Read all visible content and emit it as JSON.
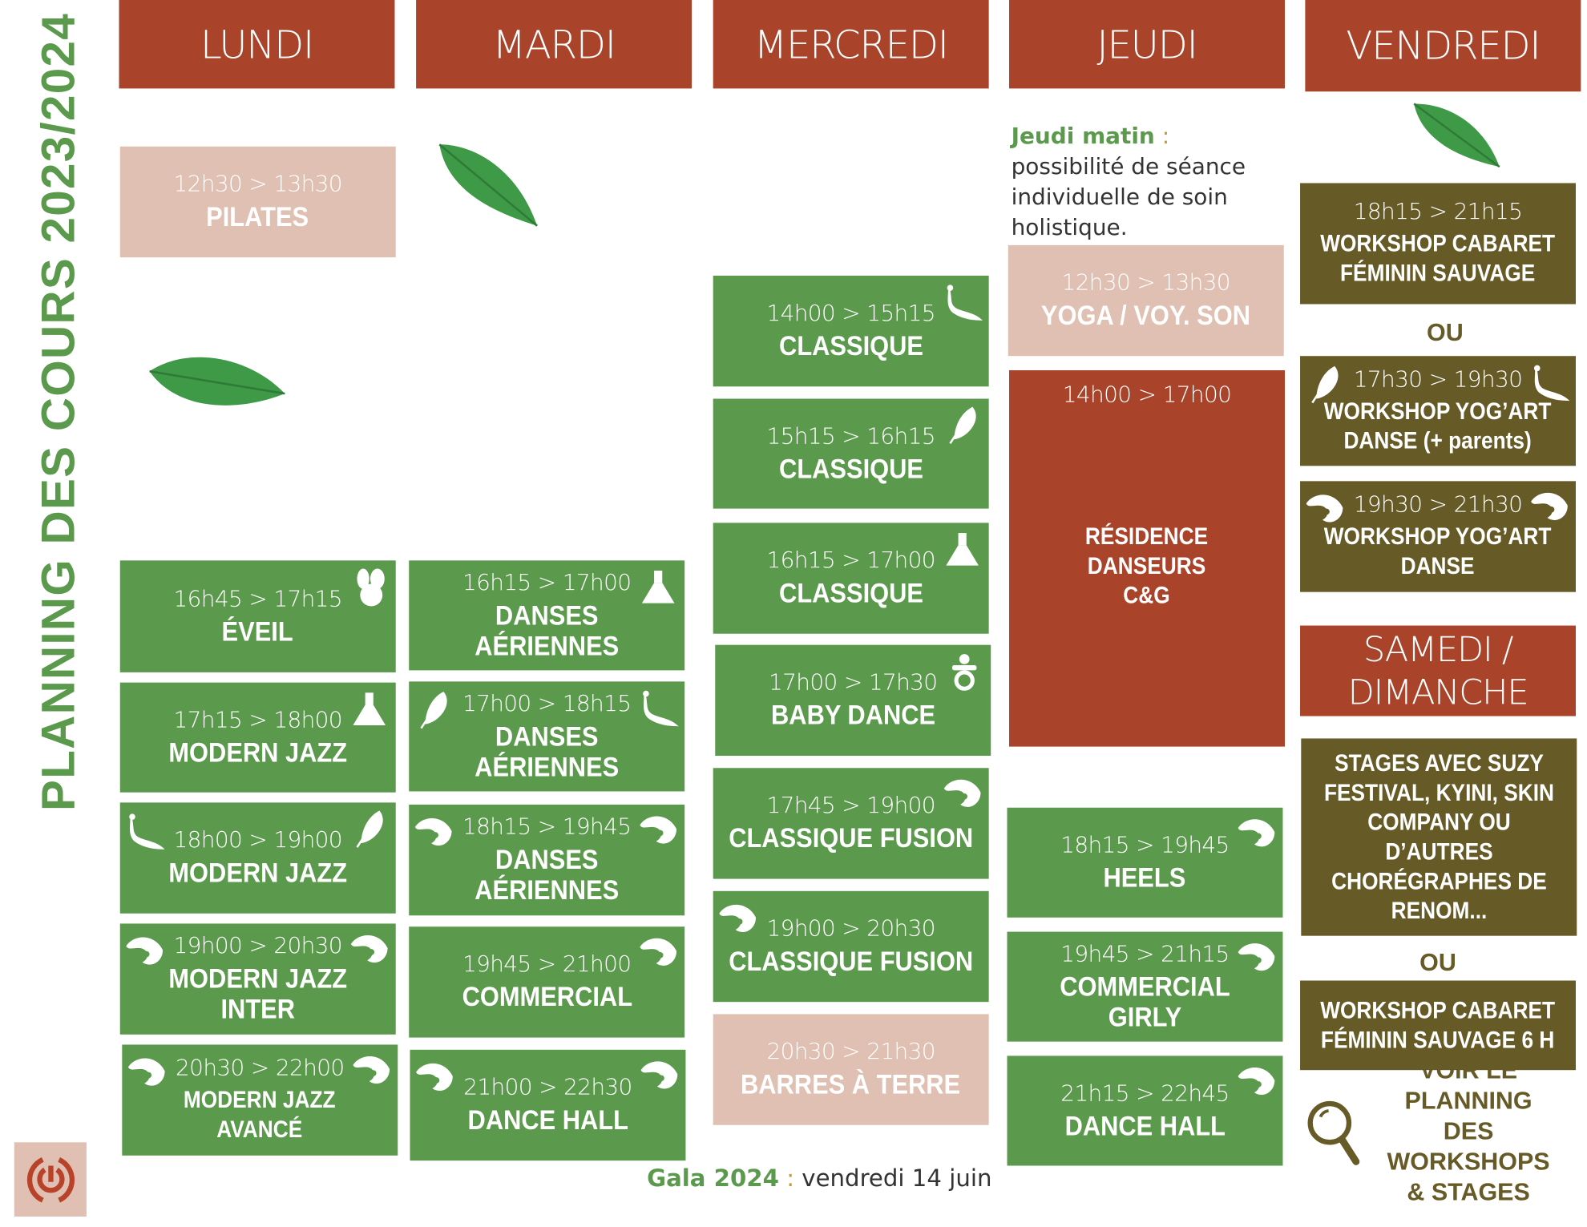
{
  "title": "PLANNING DES COURS 2023/2024",
  "colors": {
    "header": "#a94329",
    "green": "#5b9a4c",
    "pink": "#dfc0b3",
    "olive": "#665a26"
  },
  "days": [
    "LUNDI",
    "MARDI",
    "MERCREDI",
    "JEUDI",
    "VENDREDI"
  ],
  "jeudi_note": {
    "label": "Jeudi matin",
    "sep": " :",
    "text": " possibilité de séance individuelle de soin holistique."
  },
  "classes": [
    {
      "day": "LUNDI",
      "time": "12h30 > 13h30",
      "title": "PILATES",
      "color": "pink",
      "icons": []
    },
    {
      "day": "LUNDI",
      "time": "16h45 > 17h15",
      "title": "ÉVEIL",
      "color": "green",
      "icons": [
        "",
        "bunny"
      ]
    },
    {
      "day": "LUNDI",
      "time": "17h15 > 18h00",
      "title": "MODERN JAZZ",
      "color": "green",
      "icons": [
        "",
        "dress"
      ]
    },
    {
      "day": "LUNDI",
      "time": "18h00 > 19h00",
      "title": "MODERN JAZZ",
      "color": "green",
      "icons": [
        "peacock",
        "feather"
      ]
    },
    {
      "day": "LUNDI",
      "time": "19h00 > 20h30",
      "title": "MODERN JAZZ INTER",
      "color": "green",
      "icons": [
        "yinyang",
        "yinyang"
      ]
    },
    {
      "day": "LUNDI",
      "time": "20h30 > 22h00",
      "title": "MODERN JAZZ\nAVANCÉ",
      "color": "green",
      "icons": [
        "yinyang",
        "yinyang"
      ]
    },
    {
      "day": "MARDI",
      "time": "16h15 > 17h00",
      "title": "DANSES AÉRIENNES",
      "color": "green",
      "icons": [
        "",
        "dress"
      ]
    },
    {
      "day": "MARDI",
      "time": "17h00 > 18h15",
      "title": "DANSES AÉRIENNES",
      "color": "green",
      "icons": [
        "feather",
        "peacock"
      ]
    },
    {
      "day": "MARDI",
      "time": "18h15 > 19h45",
      "title": "DANSES AÉRIENNES",
      "color": "green",
      "icons": [
        "yinyang",
        "yinyang"
      ]
    },
    {
      "day": "MARDI",
      "time": "19h45 > 21h00",
      "title": "COMMERCIAL",
      "color": "green",
      "icons": [
        "",
        "yinyang"
      ]
    },
    {
      "day": "MARDI",
      "time": "21h00 > 22h30",
      "title": "DANCE HALL",
      "color": "green",
      "icons": [
        "yinyang",
        "yinyang"
      ]
    },
    {
      "day": "MERCREDI",
      "time": "14h00 > 15h15",
      "title": "CLASSIQUE",
      "color": "green",
      "icons": [
        "",
        "peacock"
      ]
    },
    {
      "day": "MERCREDI",
      "time": "15h15 > 16h15",
      "title": "CLASSIQUE",
      "color": "green",
      "icons": [
        "",
        "feather"
      ]
    },
    {
      "day": "MERCREDI",
      "time": "16h15 > 17h00",
      "title": "CLASSIQUE",
      "color": "green",
      "icons": [
        "",
        "dress"
      ]
    },
    {
      "day": "MERCREDI",
      "time": "17h00 > 17h30",
      "title": "BABY DANCE",
      "color": "green",
      "icons": [
        "",
        "pacifier"
      ]
    },
    {
      "day": "MERCREDI",
      "time": "17h45 > 19h00",
      "title": "CLASSIQUE FUSION",
      "color": "green",
      "icons": [
        "",
        "yinyang"
      ]
    },
    {
      "day": "MERCREDI",
      "time": "19h00 > 20h30",
      "title": "CLASSIQUE FUSION",
      "color": "green",
      "icons": [
        "yinyang",
        ""
      ]
    },
    {
      "day": "MERCREDI",
      "time": "20h30 > 21h30",
      "title": "BARRES À TERRE",
      "color": "pink",
      "icons": []
    },
    {
      "day": "JEUDI",
      "time": "12h30 > 13h30",
      "title": "YOGA / VOY. SON",
      "color": "pink",
      "icons": []
    },
    {
      "day": "JEUDI",
      "time": "14h00 > 17h00",
      "title": "RÉSIDENCE\nDANSEURS\nC&G",
      "color": "red",
      "icons": []
    },
    {
      "day": "JEUDI",
      "time": "18h15 > 19h45",
      "title": "HEELS",
      "color": "green",
      "icons": [
        "",
        "yinyang"
      ]
    },
    {
      "day": "JEUDI",
      "time": "19h45 > 21h15",
      "title": "COMMERCIAL GIRLY",
      "color": "green",
      "icons": [
        "",
        "yinyang"
      ]
    },
    {
      "day": "JEUDI",
      "time": "21h15 > 22h45",
      "title": "DANCE HALL",
      "color": "green",
      "icons": [
        "",
        "yinyang"
      ]
    },
    {
      "day": "VENDREDI",
      "time": "18h15 > 21h15",
      "title": "WORKSHOP CABARET\nFÉMININ SAUVAGE",
      "color": "olive",
      "icons": []
    },
    {
      "day": "VENDREDI",
      "time": "17h30 > 19h30",
      "title": "WORKSHOP YOG’ART\nDANSE (+ parents)",
      "color": "olive",
      "icons": [
        "feather",
        "peacock"
      ]
    },
    {
      "day": "VENDREDI",
      "time": "19h30 > 21h30",
      "title": "WORKSHOP YOG’ART\nDANSE",
      "color": "olive",
      "icons": [
        "yinyang",
        "yinyang"
      ]
    },
    {
      "day": "SAMEDI / DIMANCHE",
      "time": "",
      "title": "STAGES AVEC SUZY\nFESTIVAL, KYINI, SKIN\nCOMPANY OU\nD’AUTRES\nCHORÉGRAPHES DE\nRENOM...",
      "color": "olive",
      "icons": []
    },
    {
      "day": "SAMEDI / DIMANCHE",
      "time": "",
      "title": "WORKSHOP CABARET\nFÉMININ SAUVAGE 6 H",
      "color": "olive",
      "icons": []
    }
  ],
  "weekend_header": "SAMEDI /\nDIMANCHE",
  "or_label": "OU",
  "workshops_link": "VOIR LE PLANNING\nDES WORKSHOPS\n& STAGES",
  "gala": {
    "label": "Gala 2024",
    "sep": " :",
    "text": " vendredi 14 juin"
  }
}
